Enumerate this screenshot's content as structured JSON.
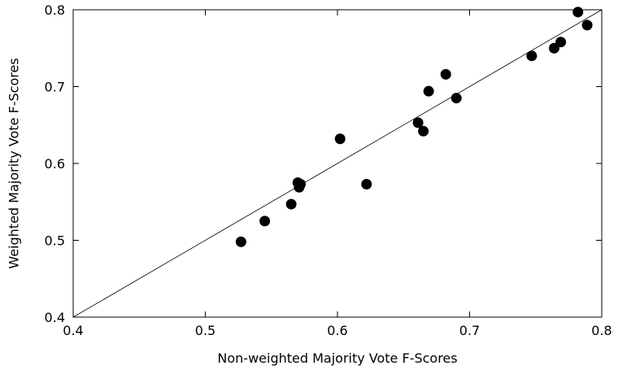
{
  "chart_data": {
    "type": "scatter",
    "title": "",
    "xlabel": "Non-weighted Majority Vote F-Scores",
    "ylabel": "Weighted Majority Vote F-Scores",
    "xlim": [
      0.4,
      0.8
    ],
    "ylim": [
      0.4,
      0.8
    ],
    "x_ticks": [
      "0.4",
      "0.5",
      "0.6",
      "0.7",
      "0.8"
    ],
    "y_ticks": [
      "0.4",
      "0.5",
      "0.6",
      "0.7",
      "0.8"
    ],
    "grid": false,
    "legend": "none",
    "reference_line": {
      "from": [
        0.4,
        0.4
      ],
      "to": [
        0.8,
        0.8
      ]
    },
    "marker_color": "#000000",
    "series": [
      {
        "x": [
          0.527,
          0.545,
          0.565,
          0.57,
          0.571,
          0.572,
          0.602,
          0.622,
          0.661,
          0.665,
          0.669,
          0.682,
          0.69,
          0.747,
          0.764,
          0.769,
          0.782,
          0.789
        ],
        "y": [
          0.498,
          0.525,
          0.547,
          0.575,
          0.569,
          0.573,
          0.632,
          0.573,
          0.653,
          0.642,
          0.694,
          0.716,
          0.685,
          0.74,
          0.75,
          0.758,
          0.797,
          0.78
        ]
      }
    ]
  }
}
